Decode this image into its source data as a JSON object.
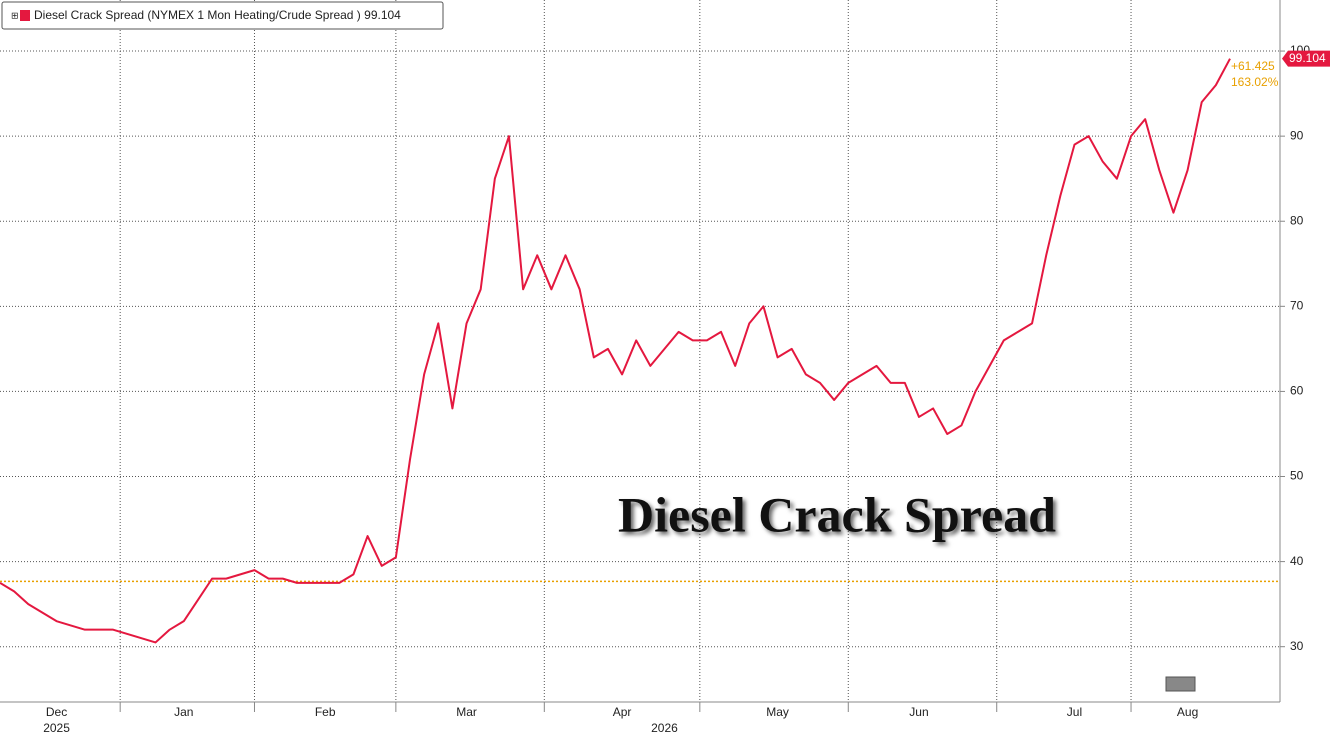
{
  "chart_data": {
    "type": "line",
    "legend_label": "Diesel Crack Spread (NYMEX 1 Mon Heating/Crude Spread ) 99.104",
    "annotation": "Diesel Crack Spread",
    "change_labels": [
      "+61.425",
      "163.02%"
    ],
    "categories": [
      null,
      null,
      null,
      null,
      "Dec",
      null,
      null,
      null,
      null,
      null,
      null,
      null,
      null,
      "Jan",
      null,
      null,
      null,
      null,
      null,
      null,
      null,
      null,
      null,
      "Feb",
      null,
      null,
      null,
      null,
      null,
      null,
      null,
      null,
      null,
      "Mar",
      null,
      null,
      null,
      null,
      null,
      null,
      null,
      null,
      null,
      null,
      "Apr",
      null,
      null,
      null,
      null,
      null,
      null,
      null,
      null,
      null,
      null,
      "May",
      null,
      null,
      null,
      null,
      null,
      null,
      null,
      null,
      null,
      "Jun",
      null,
      null,
      null,
      null,
      null,
      null,
      null,
      null,
      null,
      null,
      "Jul",
      null,
      null,
      null,
      null,
      null,
      null,
      null,
      "Aug",
      null,
      null,
      null
    ],
    "year_labels": [
      null,
      null,
      null,
      null,
      "2025",
      null,
      null,
      null,
      null,
      null,
      null,
      null,
      null,
      null,
      null,
      null,
      null,
      null,
      null,
      null,
      null,
      null,
      null,
      null,
      null,
      null,
      null,
      null,
      null,
      null,
      null,
      null,
      null,
      null,
      null,
      null,
      null,
      null,
      null,
      null,
      null,
      null,
      null,
      null,
      null,
      null,
      null,
      "2026",
      null,
      null,
      null,
      null,
      null,
      null,
      null,
      null,
      null,
      null,
      null,
      null,
      null,
      null,
      null,
      null,
      null,
      null,
      null,
      null,
      null,
      null,
      null,
      null,
      null,
      null,
      null,
      null,
      null,
      null,
      null,
      null,
      null,
      null,
      null,
      null,
      null,
      null,
      null,
      null
    ],
    "series": [
      {
        "name": "Diesel Crack Spread",
        "color": "#e4183f",
        "values": [
          37.5,
          36.5,
          35,
          34,
          33,
          32.5,
          32,
          32,
          32,
          31.5,
          31,
          30.5,
          32,
          33,
          35.5,
          38,
          38,
          38.5,
          39,
          38,
          38,
          37.5,
          37.5,
          37.5,
          37.5,
          38.5,
          43,
          39.5,
          40.5,
          52,
          62,
          68,
          58,
          68,
          72,
          85,
          90,
          72,
          76,
          72,
          76,
          72,
          64,
          65,
          62,
          66,
          63,
          65,
          67,
          66,
          66,
          67,
          63,
          68,
          70,
          64,
          65,
          62,
          61,
          59,
          61,
          62,
          63,
          61,
          61,
          57,
          58,
          55,
          56,
          60,
          63,
          66,
          67,
          68,
          76,
          83,
          89,
          90,
          87,
          85,
          90,
          92,
          86,
          81,
          86,
          94,
          96,
          99.104
        ]
      }
    ],
    "reference_line": {
      "value": 37.679,
      "color": "#e8a000"
    },
    "ylim": [
      23.5,
      106
    ],
    "yticks": [
      30,
      40,
      50,
      60,
      70,
      80,
      90,
      100
    ],
    "grid": true
  }
}
